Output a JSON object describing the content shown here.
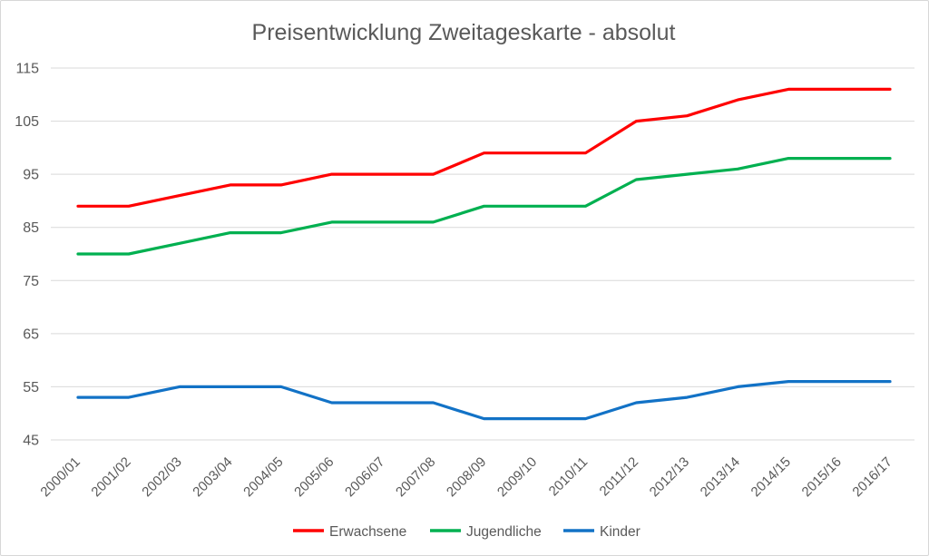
{
  "chart_data": {
    "type": "line",
    "title": "Preisentwicklung Zweitageskarte - absolut",
    "xlabel": "",
    "ylabel": "",
    "categories": [
      "2000/01",
      "2001/02",
      "2002/03",
      "2003/04",
      "2004/05",
      "2005/06",
      "2006/07",
      "2007/08",
      "2008/09",
      "2009/10",
      "2010/11",
      "2011/12",
      "2012/13",
      "2013/14",
      "2014/15",
      "2015/16",
      "2016/17"
    ],
    "series": [
      {
        "name": "Erwachsene",
        "color": "#ff0000",
        "values": [
          89,
          89,
          91,
          93,
          93,
          95,
          95,
          95,
          99,
          99,
          99,
          105,
          106,
          109,
          111,
          111,
          111
        ]
      },
      {
        "name": "Jugendliche",
        "color": "#00b050",
        "values": [
          80,
          80,
          82,
          84,
          84,
          86,
          86,
          86,
          89,
          89,
          89,
          94,
          95,
          96,
          98,
          98,
          98
        ]
      },
      {
        "name": "Kinder",
        "color": "#1272c6",
        "values": [
          53,
          53,
          55,
          55,
          55,
          52,
          52,
          52,
          49,
          49,
          49,
          52,
          53,
          55,
          56,
          56,
          56
        ]
      }
    ],
    "ylim": [
      45,
      115
    ],
    "ytick_step": 10,
    "yticks": [
      45,
      55,
      65,
      75,
      85,
      95,
      105,
      115
    ],
    "grid": true,
    "legend_position": "bottom",
    "text_color": "#595959",
    "gridline_color": "#d9d9d9"
  }
}
